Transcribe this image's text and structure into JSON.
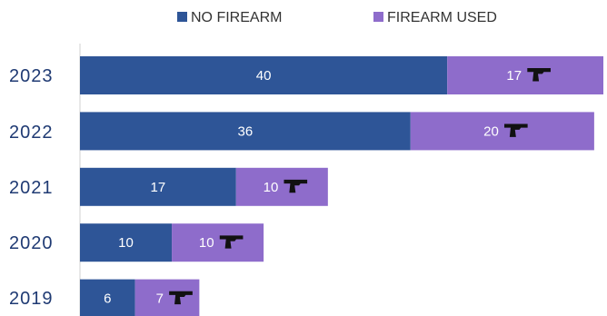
{
  "chart_data": {
    "type": "bar",
    "orientation": "horizontal",
    "stacked": true,
    "categories": [
      "2023",
      "2022",
      "2021",
      "2020",
      "2019"
    ],
    "series": [
      {
        "name": "NO FIREARM",
        "values": [
          40,
          36,
          17,
          10,
          6
        ],
        "color": "#2e5597"
      },
      {
        "name": "FIREARM USED",
        "values": [
          17,
          20,
          10,
          10,
          7
        ],
        "color": "#8e6ccb",
        "icon": "handgun-icon"
      }
    ],
    "legend_position": "top",
    "grid": false,
    "data_labels": true,
    "xlim": [
      0,
      57
    ]
  }
}
